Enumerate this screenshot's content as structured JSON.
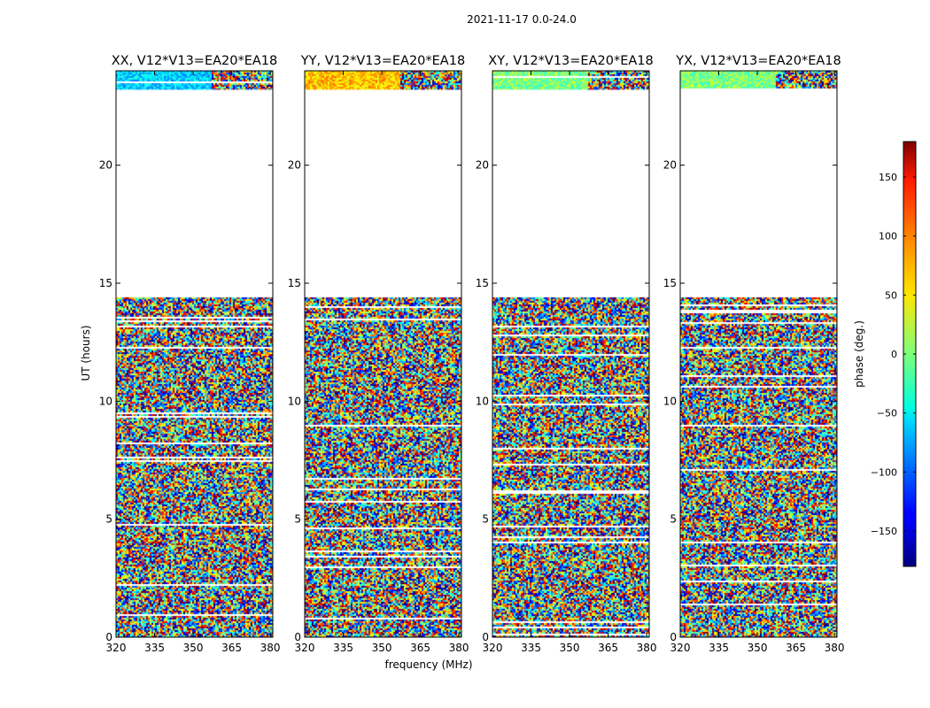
{
  "figure": {
    "suptitle": "2021-11-17 0.0-24.0",
    "xlabel": "frequency (MHz)",
    "ylabel": "UT (hours)"
  },
  "chart_data": {
    "type": "heatmap",
    "xlim": [
      320,
      381
    ],
    "ylim": [
      0,
      24
    ],
    "xticks": [
      320,
      335,
      350,
      365,
      380
    ],
    "yticks": [
      0,
      5,
      10,
      15,
      20
    ],
    "colormap": "jet",
    "nan_color": "#ffffff",
    "data_gaps_hours": [
      [
        20.5,
        23.2
      ],
      [
        14.4,
        20.5
      ]
    ],
    "panels": [
      {
        "title": "XX, V12*V13=EA20*EA18"
      },
      {
        "title": "YY, V12*V13=EA20*EA18"
      },
      {
        "title": "XY, V12*V13=EA20*EA18"
      },
      {
        "title": "YX, V12*V13=EA20*EA18"
      }
    ],
    "colorbar": {
      "label": "phase (deg.)",
      "range": [
        -180,
        180
      ],
      "ticks": [
        -150,
        -100,
        -50,
        0,
        50,
        100,
        150
      ],
      "tick_labels": [
        "−150",
        "−100",
        "−50",
        "0",
        "50",
        "100",
        "150"
      ]
    }
  }
}
